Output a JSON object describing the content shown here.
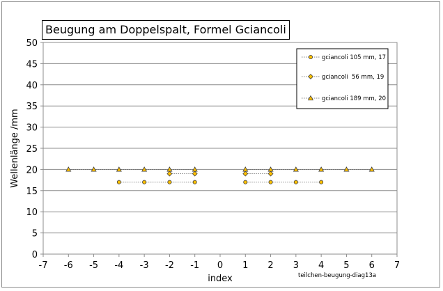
{
  "chart_data": {
    "type": "scatter",
    "title": "Beugung am Doppelspalt, Formel Gciancoli",
    "xlabel": "index",
    "ylabel": "Wellenlänge /mm",
    "caption": "teilchen-beugung-diag13a",
    "xlim": [
      -7,
      7
    ],
    "ylim": [
      0,
      50
    ],
    "x_ticks": [
      -7,
      -6,
      -5,
      -4,
      -3,
      -2,
      -1,
      0,
      1,
      2,
      3,
      4,
      5,
      6,
      7
    ],
    "y_ticks": [
      0,
      5,
      10,
      15,
      20,
      25,
      30,
      35,
      40,
      45,
      50
    ],
    "grid": true,
    "legend_position": "top-right",
    "series": [
      {
        "name": "gciancoli 105 mm, 17",
        "marker": "circle",
        "color": "#ffc000",
        "segments": [
          {
            "x": [
              -4,
              -3,
              -2,
              -1
            ],
            "y": [
              17,
              17,
              17,
              17
            ]
          },
          {
            "x": [
              1,
              2,
              3,
              4
            ],
            "y": [
              17,
              17,
              17,
              17
            ]
          }
        ]
      },
      {
        "name": "gciancoli  56 mm, 19",
        "marker": "diamond",
        "color": "#ffc000",
        "segments": [
          {
            "x": [
              -2,
              -1
            ],
            "y": [
              19,
              19
            ]
          },
          {
            "x": [
              1,
              2
            ],
            "y": [
              19,
              19
            ]
          }
        ]
      },
      {
        "name": "gciancoli 189 mm, 20",
        "marker": "triangle",
        "color": "#ffc000",
        "segments": [
          {
            "x": [
              -6,
              -5,
              -4,
              -3,
              -2,
              -1
            ],
            "y": [
              20,
              20,
              20,
              20,
              20,
              20
            ]
          },
          {
            "x": [
              1,
              2,
              3,
              4,
              5,
              6
            ],
            "y": [
              20,
              20,
              20,
              20,
              20,
              20
            ]
          }
        ]
      }
    ]
  }
}
